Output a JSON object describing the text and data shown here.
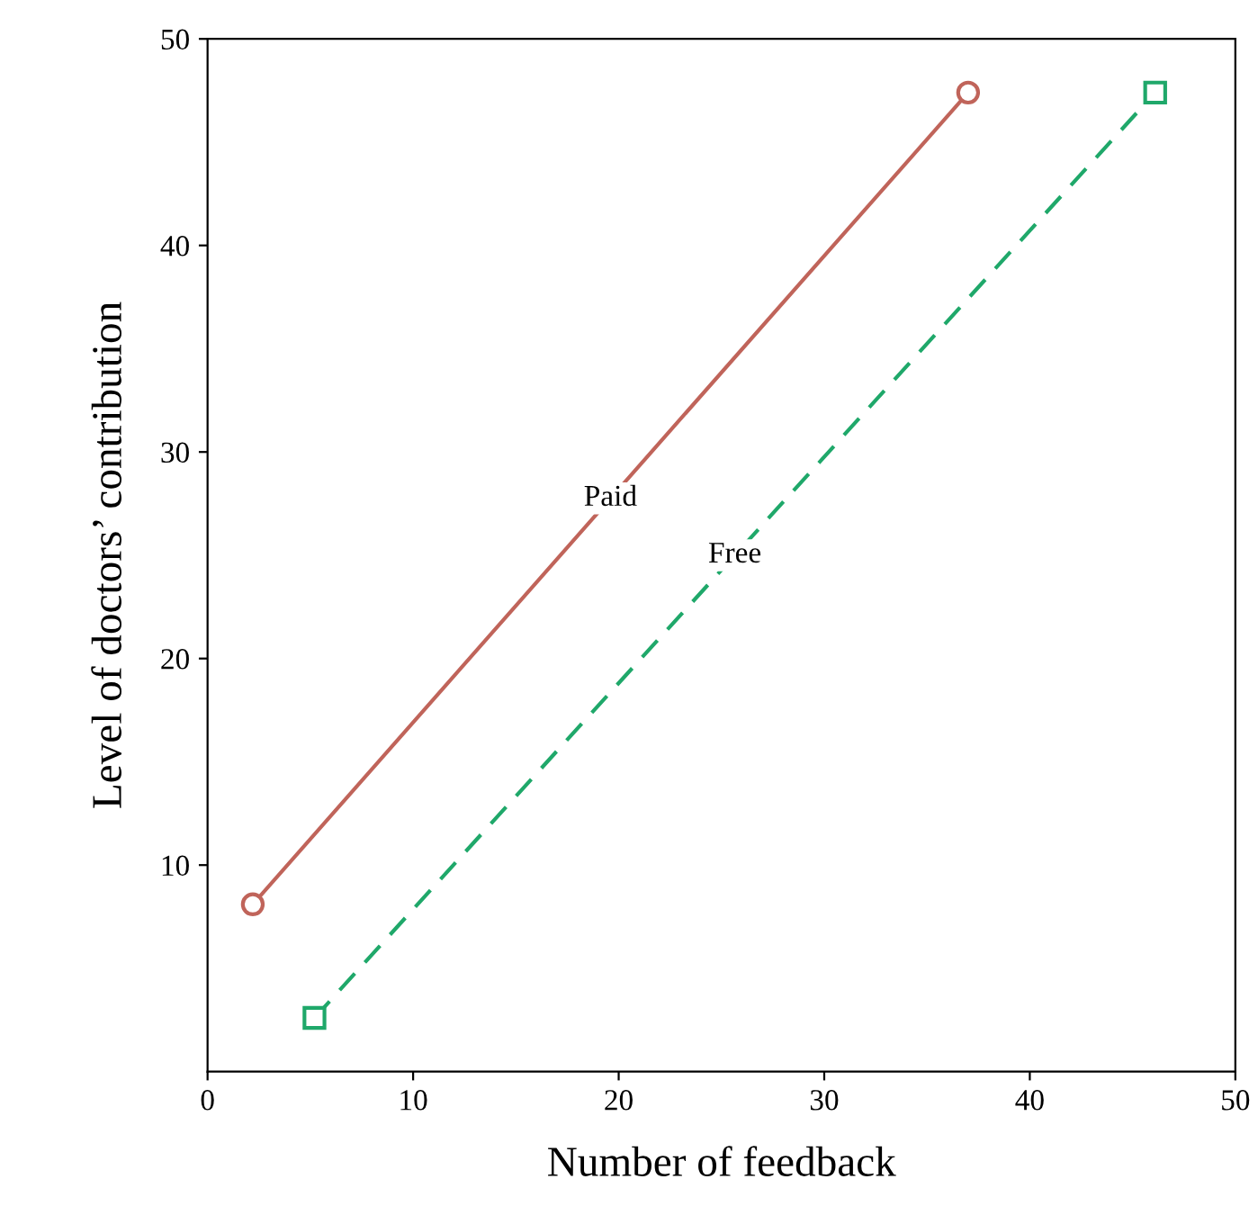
{
  "chart_data": {
    "type": "line",
    "xlabel": "Number of feedback",
    "ylabel": "Level of doctors’ contribution",
    "xlim": [
      0,
      50
    ],
    "ylim": [
      0,
      50
    ],
    "xticks": [
      0,
      10,
      20,
      30,
      40,
      50
    ],
    "yticks": [
      10,
      20,
      30,
      40,
      50
    ],
    "grid": false,
    "legend": false,
    "series": [
      {
        "name": "Paid",
        "color": "#c0645a",
        "x": [
          2.2,
          37.0
        ],
        "values": [
          8.1,
          47.4
        ],
        "marker": "circle",
        "line_style": "solid"
      },
      {
        "name": "Free",
        "color": "#1fa86a",
        "x": [
          5.2,
          46.1
        ],
        "values": [
          2.6,
          47.4
        ],
        "marker": "square",
        "line_style": "dashed"
      }
    ]
  }
}
